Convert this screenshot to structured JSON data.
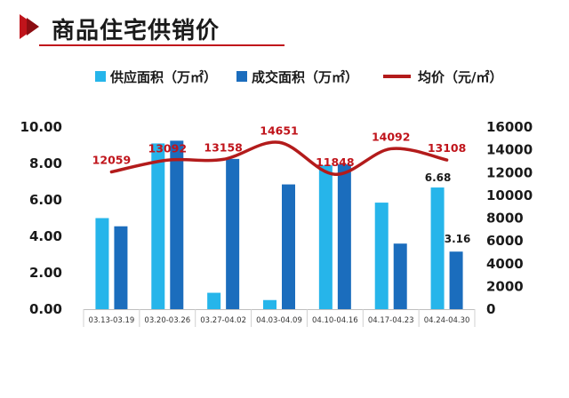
{
  "header": {
    "title": "商品住宅供销价"
  },
  "colors": {
    "accent": "#c0141b",
    "supply": "#26b5ea",
    "deal": "#1b6dbd",
    "price": "#b31b1b"
  },
  "chart_data": {
    "type": "bar",
    "categories": [
      "03.13-03.19",
      "03.20-03.26",
      "03.27-04.02",
      "04.03-04.09",
      "04.10-04.16",
      "04.17-04.23",
      "04.24-04.30"
    ],
    "series": [
      {
        "name": "供应面积（万㎡）",
        "type": "bar",
        "axis": "left",
        "values": [
          5.0,
          9.1,
          0.9,
          0.5,
          7.9,
          5.85,
          6.68
        ]
      },
      {
        "name": "成交面积（万㎡）",
        "type": "bar",
        "axis": "left",
        "values": [
          4.55,
          9.25,
          8.25,
          6.85,
          7.95,
          3.6,
          3.16
        ]
      },
      {
        "name": "均价（元/㎡）",
        "type": "line",
        "axis": "right",
        "values": [
          12059,
          13092,
          13158,
          14651,
          11848,
          14092,
          13108
        ]
      }
    ],
    "left_axis": {
      "ylim": [
        0,
        10
      ],
      "ticks": [
        "0.00",
        "2.00",
        "4.00",
        "6.00",
        "8.00",
        "10.00"
      ]
    },
    "right_axis": {
      "ylim": [
        0,
        16000
      ],
      "ticks": [
        "0",
        "2000",
        "4000",
        "6000",
        "8000",
        "10000",
        "12000",
        "14000",
        "16000"
      ]
    },
    "data_labels": {
      "supply_last": "6.68",
      "deal_last": "3.16",
      "price": [
        "12059",
        "13092",
        "13158",
        "14651",
        "11848",
        "14092",
        "13108"
      ]
    },
    "legend_position": "top"
  }
}
